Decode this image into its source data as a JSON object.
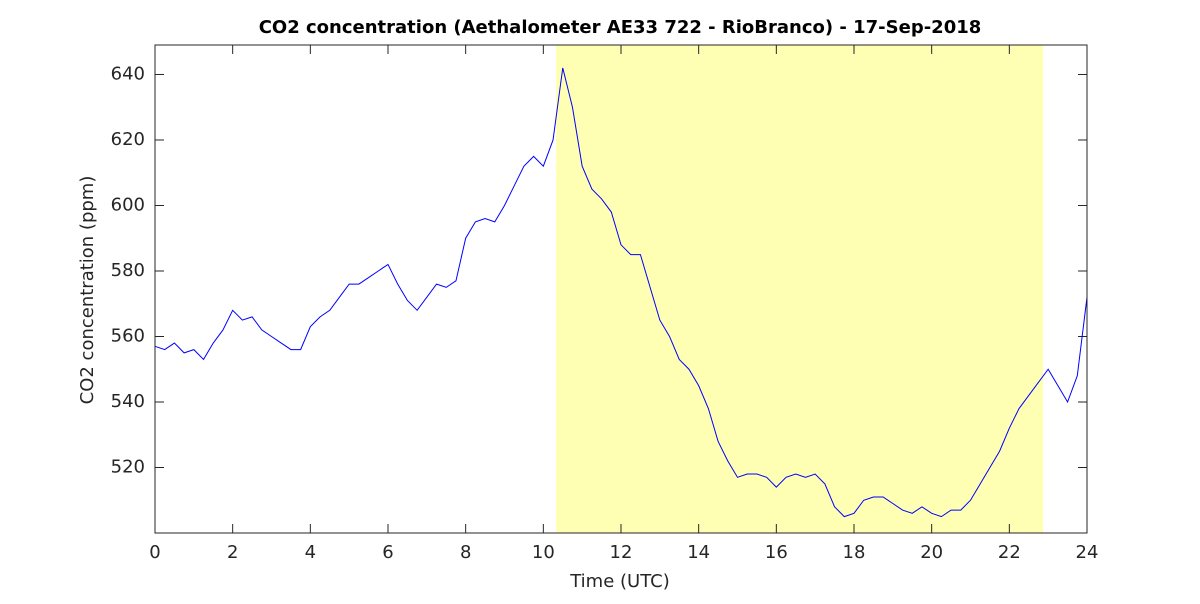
{
  "chart_data": {
    "type": "line",
    "title": "CO2 concentration (Aethalometer AE33 722 - RioBranco) - 17-Sep-2018",
    "x_label": "Time (UTC)",
    "y_label": "CO2 concentration (ppm)",
    "x": [
      0,
      0.25,
      0.5,
      0.75,
      1,
      1.25,
      1.5,
      1.75,
      2,
      2.25,
      2.5,
      2.75,
      3,
      3.25,
      3.5,
      3.75,
      4,
      4.25,
      4.5,
      4.75,
      5,
      5.25,
      5.5,
      5.75,
      6,
      6.25,
      6.5,
      6.75,
      7,
      7.25,
      7.5,
      7.75,
      8,
      8.25,
      8.5,
      8.75,
      9,
      9.25,
      9.5,
      9.75,
      10,
      10.25,
      10.5,
      10.75,
      11,
      11.25,
      11.5,
      11.75,
      12,
      12.25,
      12.5,
      12.75,
      13,
      13.25,
      13.5,
      13.75,
      14,
      14.25,
      14.5,
      14.75,
      15,
      15.25,
      15.5,
      15.75,
      16,
      16.25,
      16.5,
      16.75,
      17,
      17.25,
      17.5,
      17.75,
      18,
      18.25,
      18.5,
      18.75,
      19,
      19.25,
      19.5,
      19.75,
      20,
      20.25,
      20.5,
      20.75,
      21,
      21.25,
      21.5,
      21.75,
      22,
      22.25,
      22.5,
      22.75,
      23,
      23.25,
      23.5,
      23.75,
      24
    ],
    "series": [
      {
        "color": "#0000ff",
        "values": [
          557,
          556,
          558,
          555,
          556,
          553,
          558,
          562,
          568,
          565,
          566,
          562,
          560,
          558,
          556,
          556,
          563,
          566,
          568,
          572,
          576,
          576,
          578,
          580,
          582,
          576,
          571,
          568,
          572,
          576,
          575,
          577,
          590,
          595,
          596,
          595,
          600,
          606,
          612,
          615,
          612,
          620,
          642,
          630,
          612,
          605,
          602,
          598,
          588,
          585,
          585,
          575,
          565,
          560,
          553,
          550,
          545,
          538,
          528,
          522,
          517,
          518,
          518,
          517,
          514,
          517,
          518,
          517,
          518,
          515,
          508,
          505,
          506,
          510,
          511,
          511,
          509,
          507,
          506,
          508,
          506,
          505,
          507,
          507,
          510,
          515,
          520,
          525,
          532,
          538,
          542,
          546,
          550,
          545,
          540,
          548,
          572
        ]
      }
    ],
    "shade": {
      "xrange": [
        10.33,
        22.87
      ],
      "color": "#ffffb3"
    },
    "xlim": [
      0,
      24
    ],
    "xticks": [
      0,
      2,
      4,
      6,
      8,
      10,
      12,
      14,
      16,
      18,
      20,
      22,
      24
    ],
    "ylim": [
      500,
      649
    ],
    "yticks": [
      520,
      540,
      560,
      580,
      600,
      620,
      640
    ]
  }
}
